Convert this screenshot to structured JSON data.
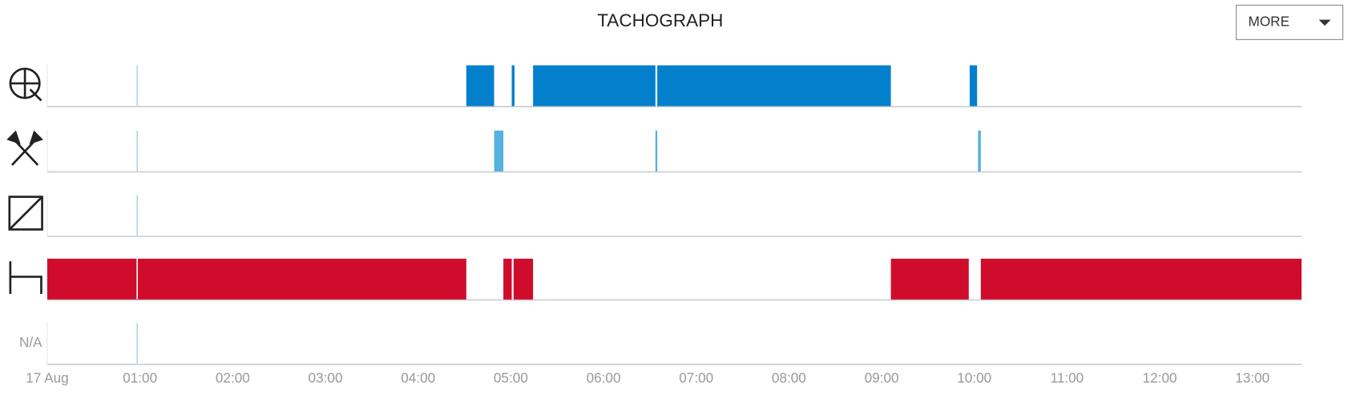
{
  "chart_data": {
    "type": "timeline",
    "title": "TACHOGRAPH",
    "xlim": [
      0,
      13.53
    ],
    "xticks": [
      {
        "value": 0,
        "label": "17 Aug"
      },
      {
        "value": 1,
        "label": "01:00"
      },
      {
        "value": 2,
        "label": "02:00"
      },
      {
        "value": 3,
        "label": "03:00"
      },
      {
        "value": 4,
        "label": "04:00"
      },
      {
        "value": 5,
        "label": "05:00"
      },
      {
        "value": 6,
        "label": "06:00"
      },
      {
        "value": 7,
        "label": "07:00"
      },
      {
        "value": 8,
        "label": "08:00"
      },
      {
        "value": 9,
        "label": "09:00"
      },
      {
        "value": 10,
        "label": "10:00"
      },
      {
        "value": 11,
        "label": "11:00"
      },
      {
        "value": 12,
        "label": "12:00"
      },
      {
        "value": 13,
        "label": "13:00"
      }
    ],
    "markers": [
      0.97
    ],
    "rows": [
      {
        "color": "#0380cc",
        "segments": [
          [
            4.52,
            4.82
          ],
          [
            5.01,
            5.04
          ],
          [
            5.24,
            6.56
          ],
          [
            6.58,
            9.1
          ],
          [
            9.95,
            10.03
          ]
        ]
      },
      {
        "color": "#55b1e0",
        "segments": [
          [
            4.82,
            4.92
          ],
          [
            6.56,
            6.58
          ],
          [
            10.04,
            10.07
          ]
        ]
      },
      {
        "color": "#0380cc",
        "segments": []
      },
      {
        "color": "#d00c2d",
        "segments": [
          [
            0,
            4.52
          ],
          [
            4.92,
            5.01
          ],
          [
            5.03,
            5.24
          ],
          [
            9.1,
            9.94
          ],
          [
            10.07,
            13.53
          ]
        ]
      },
      {
        "label": "N/A",
        "color": "#0380cc",
        "segments": []
      }
    ]
  },
  "menu_button": "MORE"
}
